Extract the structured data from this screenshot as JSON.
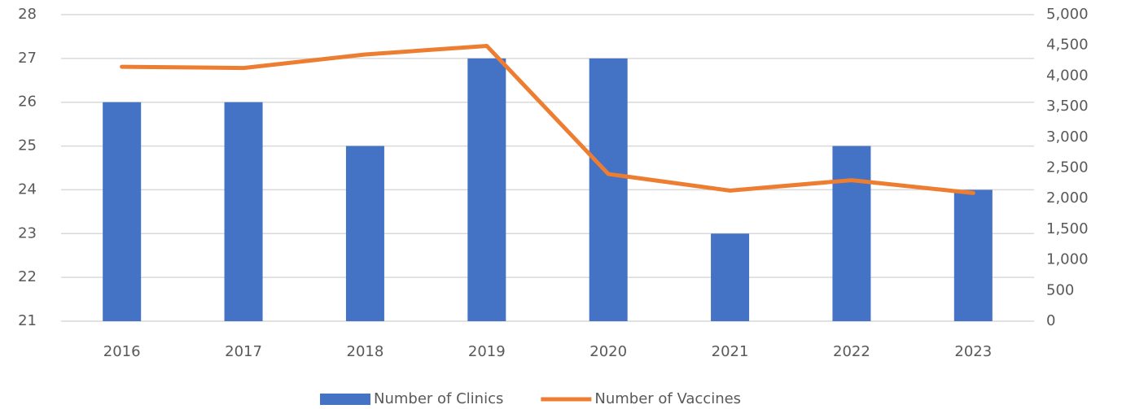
{
  "chart_data": {
    "type": "bar",
    "categories": [
      "2016",
      "2017",
      "2018",
      "2019",
      "2020",
      "2021",
      "2022",
      "2023"
    ],
    "series": [
      {
        "name": "Number of Clinics",
        "type": "bar",
        "color": "#4472c4",
        "values": [
          26,
          26,
          25,
          27,
          27,
          23,
          25,
          24
        ]
      },
      {
        "name": "Number of Vaccines",
        "type": "line",
        "axis": "y2",
        "color": "#ed7d31",
        "values": [
          4150,
          4130,
          4350,
          4490,
          2400,
          2130,
          2300,
          2090
        ]
      }
    ],
    "ylim": [
      21,
      28
    ],
    "yticks": [
      21,
      22,
      23,
      24,
      25,
      26,
      27,
      28
    ],
    "y2lim": [
      0,
      5000
    ],
    "y2ticks": [
      0,
      500,
      {
        "value": 1000,
        "label": "1,000"
      },
      {
        "value": 1500,
        "label": "1,500"
      },
      {
        "value": 2000,
        "label": "2,000"
      },
      {
        "value": 2500,
        "label": "2,500"
      },
      {
        "value": 3000,
        "label": "3,000"
      },
      {
        "value": 3500,
        "label": "3,500"
      },
      {
        "value": 4000,
        "label": "4,000"
      },
      {
        "value": 4500,
        "label": "4,500"
      },
      {
        "value": 5000,
        "label": "5,000"
      }
    ],
    "grid": true,
    "legend": "bottom"
  }
}
